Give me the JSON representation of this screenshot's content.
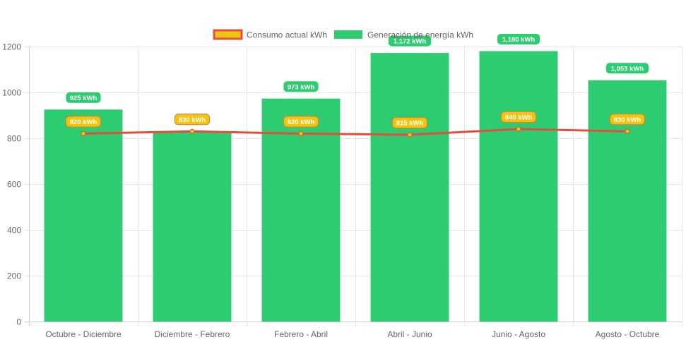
{
  "chart_data": {
    "type": "bar",
    "categories": [
      "Octubre - Diciembre",
      "Diciembre - Febrero",
      "Febrero - Abril",
      "Abril - Junio",
      "Junio - Agosto",
      "Agosto - Octubre"
    ],
    "series": [
      {
        "name": "Consumo actual kWh",
        "type": "line",
        "values": [
          820,
          830,
          820,
          815,
          840,
          830
        ],
        "labels": [
          "820 kWh",
          "830 kWh",
          "820 kWh",
          "815 kWh",
          "840 kWh",
          "830 kWh"
        ],
        "color": "#e74c3c",
        "fill": "#f1c40f"
      },
      {
        "name": "Generación de energía kWh",
        "type": "bar",
        "values": [
          925,
          830,
          973,
          1172,
          1180,
          1053
        ],
        "labels": [
          "925 kWh",
          "830 kWh",
          "973 kWh",
          "1,172 kWh",
          "1,180 kWh",
          "1,053 kWh"
        ],
        "color": "#2ecc71"
      }
    ],
    "ylim": [
      0,
      1200
    ],
    "yticks": [
      "0",
      "200",
      "400",
      "600",
      "800",
      "1000",
      "1200"
    ],
    "grid": true,
    "legend": "top-center"
  }
}
